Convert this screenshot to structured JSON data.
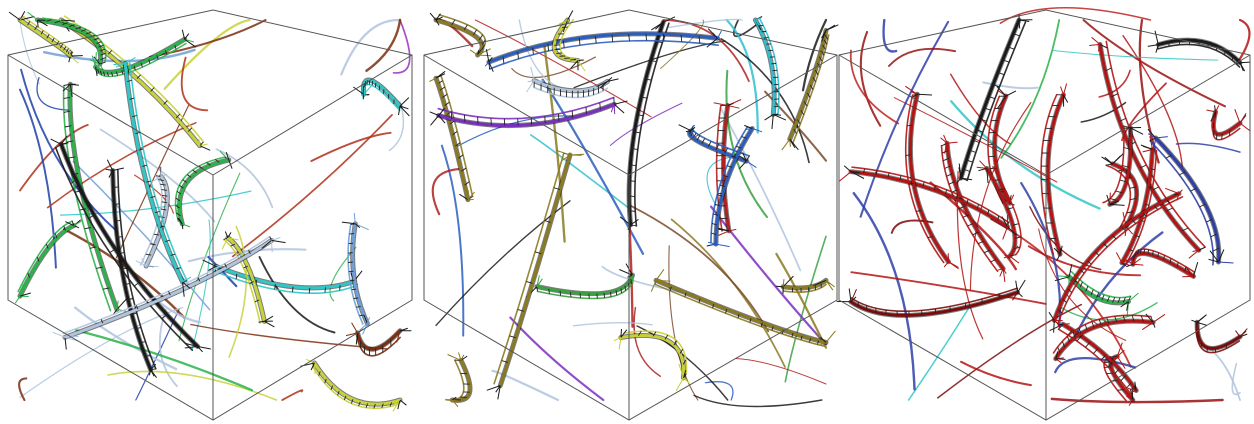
{
  "panels": [
    {
      "id": "left",
      "palette": [
        "#b0c4de",
        "#1f3fa8",
        "#2bb34a",
        "#9b2fbf",
        "#c8d23a",
        "#b03018",
        "#2fc7c7",
        "#7a2f10",
        "#1a1a1a",
        "#6fa0d8"
      ],
      "dominant": "#2bb34a",
      "seed": 11
    },
    {
      "id": "middle",
      "palette": [
        "#b0c4de",
        "#2b5fbf",
        "#3aa040",
        "#8a7a20",
        "#c9cf3a",
        "#b02020",
        "#2fbfcf",
        "#7a4a2a",
        "#1a1a1a",
        "#7b2fbf"
      ],
      "dominant": "#8a7a20",
      "seed": 23
    },
    {
      "id": "right",
      "palette": [
        "#b41414",
        "#9a1010",
        "#c02020",
        "#7a0c0c",
        "#b41414",
        "#b0c4de",
        "#2bb34a",
        "#2f3fa8",
        "#1a1a1a",
        "#2fc7c7"
      ],
      "dominant": "#b41414",
      "seed": 37
    }
  ]
}
